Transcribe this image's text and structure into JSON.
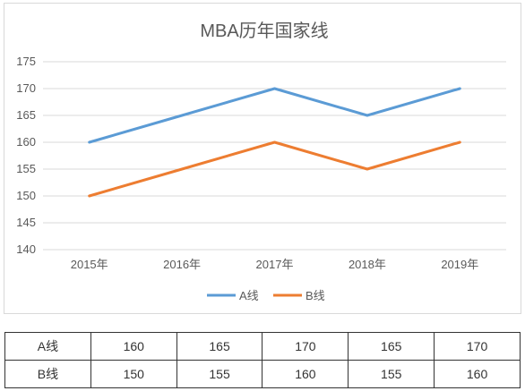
{
  "chart_data": {
    "type": "line",
    "title": "MBA历年国家线",
    "categories": [
      "2015年",
      "2016年",
      "2017年",
      "2018年",
      "2019年"
    ],
    "y_ticks": [
      "140",
      "145",
      "150",
      "155",
      "160",
      "165",
      "170",
      "175"
    ],
    "ylim": [
      140,
      175
    ],
    "grid": true,
    "legend_position": "bottom",
    "series": [
      {
        "name": "A线",
        "color": "#5b9bd5",
        "values": [
          160,
          165,
          170,
          165,
          170
        ]
      },
      {
        "name": "B线",
        "color": "#ed7d31",
        "values": [
          150,
          155,
          160,
          155,
          160
        ]
      }
    ]
  },
  "table": {
    "rows": [
      {
        "label": "A线",
        "values": [
          "160",
          "165",
          "170",
          "165",
          "170"
        ]
      },
      {
        "label": "B线",
        "values": [
          "150",
          "155",
          "160",
          "155",
          "160"
        ]
      }
    ]
  }
}
